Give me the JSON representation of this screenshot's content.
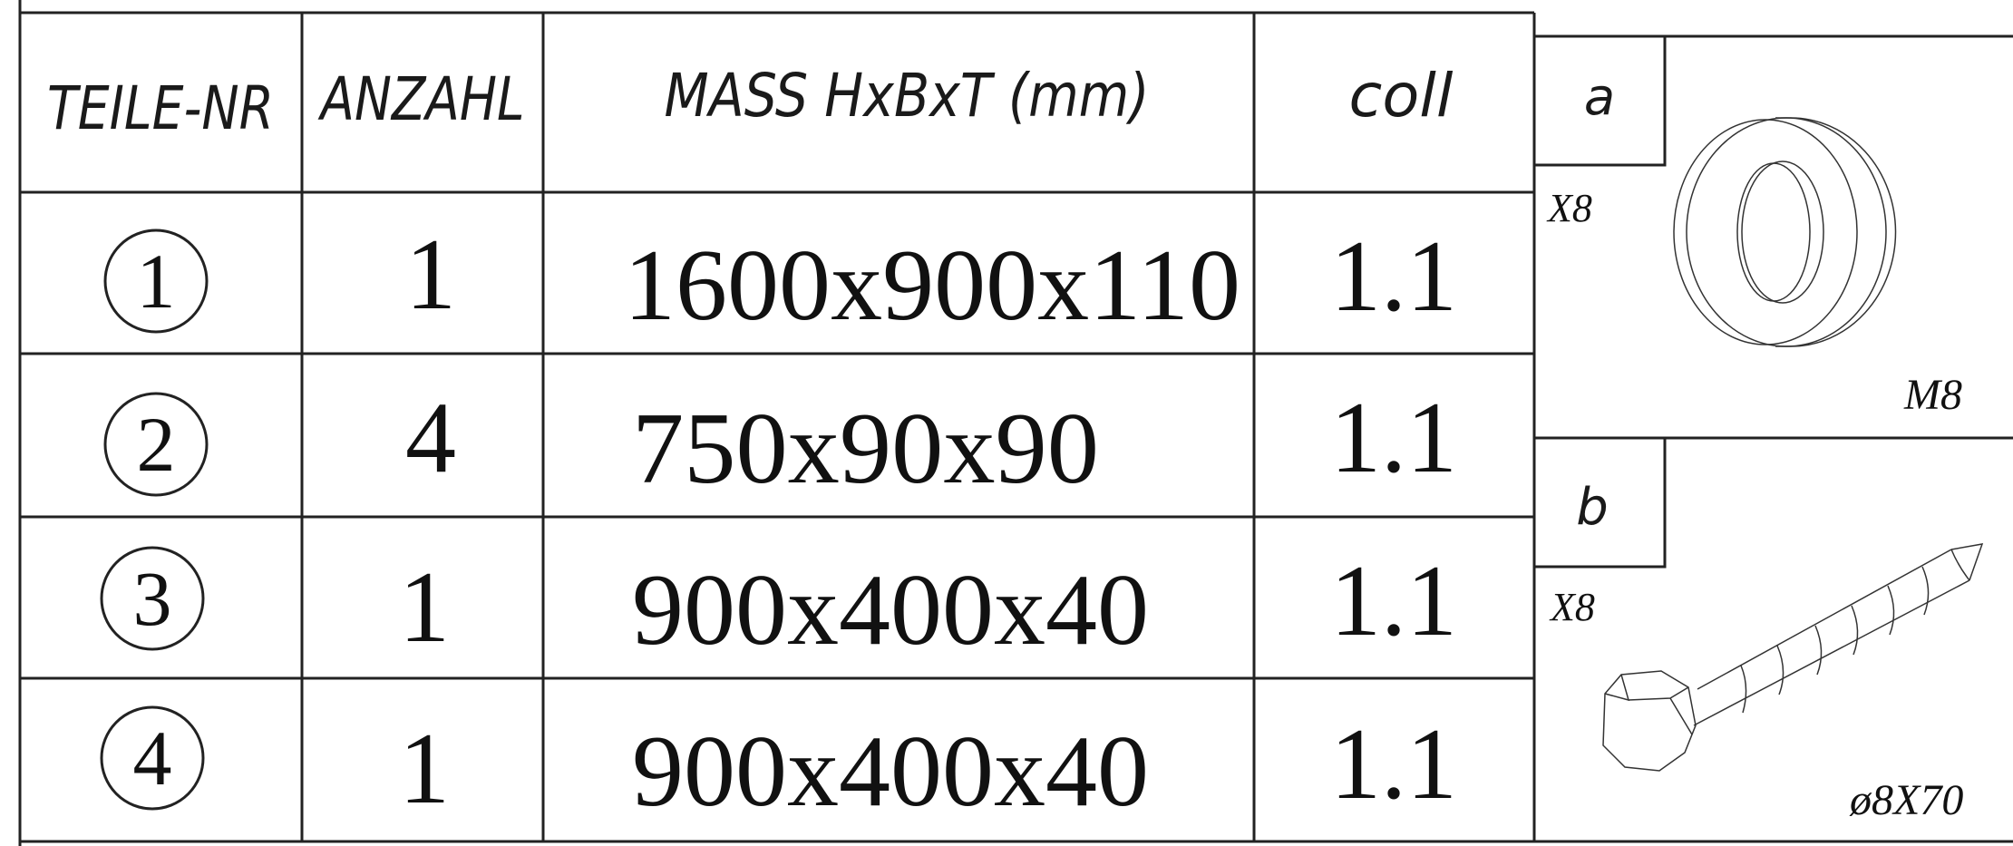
{
  "table": {
    "headers": {
      "part_no": "TEILE-NR",
      "quantity": "ANZAHL",
      "dimensions": "MASS HxBxT (mm)",
      "coll": "coll"
    },
    "rows": [
      {
        "part_no": "1",
        "quantity": "1",
        "dimensions": "1600x900x110",
        "coll": "1.1"
      },
      {
        "part_no": "2",
        "quantity": "4",
        "dimensions": "750x90x90",
        "coll": "1.1"
      },
      {
        "part_no": "3",
        "quantity": "1",
        "dimensions": "900x400x40",
        "coll": "1.1"
      },
      {
        "part_no": "4",
        "quantity": "1",
        "dimensions": "900x400x40",
        "coll": "1.1"
      }
    ]
  },
  "hardware": {
    "washer": {
      "letter": "a",
      "count": "X8",
      "spec": "M8",
      "icon": "washer-icon"
    },
    "screw": {
      "letter": "b",
      "count": "X8",
      "spec": "ø8X70",
      "icon": "hex-bolt-icon"
    }
  }
}
